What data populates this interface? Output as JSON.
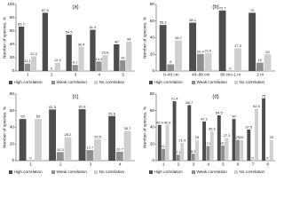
{
  "chart_data": [
    {
      "type": "bar",
      "label": "(a)",
      "y_label": "Number of species, %",
      "categories": [
        "1",
        "2",
        "3",
        "4",
        "5"
      ],
      "series": [
        {
          "name": "High correlation",
          "color": "#4d4d4d",
          "values": [
            66.7,
            87.5,
            54.5,
            61.9,
            40
          ]
        },
        {
          "name": "Weak correlation",
          "color": "#8f8f8f",
          "values": [
            11.1,
            0,
            9.1,
            14.3,
            16
          ]
        },
        {
          "name": "No correlation",
          "color": "#cfcfcf",
          "values": [
            22.2,
            12.5,
            36.4,
            23.8,
            44
          ]
        }
      ],
      "ylim": [
        0,
        100
      ],
      "yticks": [
        0,
        20,
        40,
        60,
        80,
        100
      ]
    },
    {
      "type": "bar",
      "label": "(b)",
      "y_label": "Number of species, %",
      "categories": [
        "0–40 cm",
        "40–80 cm",
        "80 cm–1 m",
        "2 m"
      ],
      "series": [
        {
          "name": "High correlation",
          "color": "#4d4d4d",
          "values": [
            55.3,
            58.1,
            72.7,
            70
          ]
        },
        {
          "name": "Weak correlation",
          "color": "#8f8f8f",
          "values": [
            8.0,
            20.4,
            0,
            10
          ]
        },
        {
          "name": "No correlation",
          "color": "#cfcfcf",
          "values": [
            36.7,
            21.5,
            27.3,
            20
          ]
        }
      ],
      "ylim": [
        0,
        80
      ],
      "yticks": [
        0,
        20,
        40,
        60,
        80
      ]
    },
    {
      "type": "bar",
      "label": "(c)",
      "y_label": "Number of species, %",
      "categories": [
        "1",
        "2",
        "3",
        "4"
      ],
      "series": [
        {
          "name": "High correlation",
          "color": "#4d4d4d",
          "values": [
            50,
            61.5,
            61.8,
            53.6
          ]
        },
        {
          "name": "Weak correlation",
          "color": "#8f8f8f",
          "values": [
            0,
            10.3,
            12.7,
            10.7
          ]
        },
        {
          "name": "No correlation",
          "color": "#cfcfcf",
          "values": [
            50,
            28.2,
            25.5,
            35.7
          ]
        }
      ],
      "ylim": [
        0,
        80
      ],
      "yticks": [
        0,
        20,
        40,
        60,
        80
      ]
    },
    {
      "type": "bar",
      "label": "(d)",
      "y_label": "Number of species, %",
      "categories": [
        "1",
        "2",
        "3",
        "4",
        "5",
        "6",
        "7",
        "8"
      ],
      "series": [
        {
          "name": "High correlation",
          "color": "#4d4d4d",
          "values": [
            42.9,
            71.4,
            66.7,
            47.1,
            54.5,
            50,
            37.5,
            75
          ]
        },
        {
          "name": "Weak correlation",
          "color": "#8f8f8f",
          "values": [
            14.3,
            7.1,
            8.3,
            17.6,
            18.2,
            25,
            0,
            0
          ]
        },
        {
          "name": "No correlation",
          "color": "#cfcfcf",
          "values": [
            42.9,
            21.4,
            25,
            35.3,
            27.3,
            25,
            62.5,
            25
          ]
        }
      ],
      "ylim": [
        0,
        80
      ],
      "yticks": [
        0,
        20,
        40,
        60,
        80
      ]
    }
  ]
}
